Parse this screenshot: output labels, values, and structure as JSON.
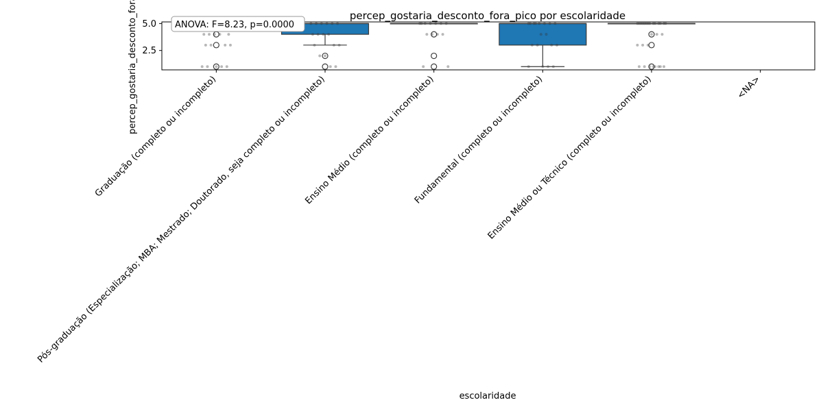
{
  "chart_data": {
    "type": "box",
    "title": "percep_gostaria_desconto_fora_pico por escolaridade",
    "xlabel": "escolaridade",
    "ylabel": "percep_gostaria_desconto_fora_pico",
    "annotation": "ANOVA: F=8.23, p=0.0000",
    "ylim": [
      0.7,
      5.15
    ],
    "yticks": [
      "2.5",
      "5.0"
    ],
    "ytick_values": [
      2.5,
      5.0
    ],
    "box_color": "#1f77b4",
    "categories": [
      "Graduação (completo ou incompleto)",
      "Pós-graduação (Especialização; MBA; Mestrado; Doutorado, seja completo ou incompleto)",
      "Ensino Médio (completo ou incompleto)",
      "Fundamental (completo ou incompleto)",
      "Ensino Médio ou Técnico (completo ou incompleto)",
      "<NA>"
    ],
    "boxes": [
      {
        "q1": 5,
        "median": 5,
        "q3": 5,
        "whisker_low": 5,
        "whisker_high": 5,
        "outliers": [
          4.5,
          4,
          3,
          1
        ]
      },
      {
        "q1": 4,
        "median": 5,
        "q3": 5,
        "whisker_low": 3,
        "whisker_high": 5,
        "outliers": [
          2,
          1
        ]
      },
      {
        "q1": 5,
        "median": 5,
        "q3": 5,
        "whisker_low": 5,
        "whisker_high": 5,
        "outliers": [
          4,
          2,
          1
        ]
      },
      {
        "q1": 3,
        "median": 5,
        "q3": 5,
        "whisker_low": 1,
        "whisker_high": 5,
        "outliers": []
      },
      {
        "q1": 5,
        "median": 5,
        "q3": 5,
        "whisker_low": 5,
        "whisker_high": 5,
        "outliers": [
          4,
          3,
          1
        ]
      },
      null
    ],
    "points": [
      [
        5,
        5,
        5,
        5,
        4.5,
        4,
        4,
        4,
        4,
        4,
        3,
        3,
        3,
        3,
        1,
        1,
        1,
        1,
        1
      ],
      [
        5,
        5,
        5,
        5,
        5,
        5,
        4,
        4,
        4,
        4,
        3,
        3,
        3,
        2,
        2,
        1,
        1
      ],
      [
        5,
        5,
        5,
        5,
        5,
        5,
        5,
        4,
        4,
        4,
        4,
        1,
        1
      ],
      [
        5,
        5,
        5,
        5,
        5,
        5,
        5,
        5,
        4,
        4,
        3,
        3,
        3,
        3,
        1,
        1,
        1,
        1
      ],
      [
        5,
        5,
        5,
        5,
        5,
        5,
        5,
        5,
        5,
        5,
        5,
        5,
        5,
        5,
        4,
        4,
        4,
        3,
        3,
        3,
        1,
        1,
        1,
        1,
        1,
        1,
        1,
        1
      ],
      []
    ]
  }
}
